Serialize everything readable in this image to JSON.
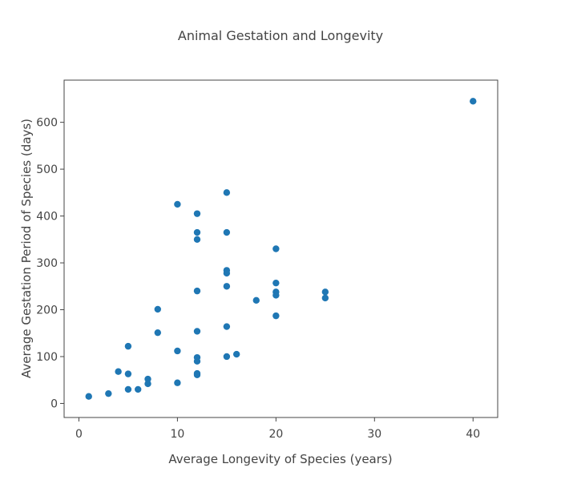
{
  "chart_data": {
    "type": "scatter",
    "title": "Animal Gestation and Longevity",
    "xlabel": "Average Longevity of Species (years)",
    "ylabel": "Average Gestation Period of Species (days)",
    "xlim": [
      -1.5,
      42.5
    ],
    "ylim": [
      -30,
      690
    ],
    "xticks": [
      0,
      10,
      20,
      30,
      40
    ],
    "yticks": [
      0,
      100,
      200,
      300,
      400,
      500,
      600
    ],
    "grid": false,
    "legend": "none",
    "marker_color": "#1f77b4",
    "series": [
      {
        "points": [
          [
            1,
            15
          ],
          [
            3,
            21
          ],
          [
            4,
            68
          ],
          [
            5,
            122
          ],
          [
            5,
            63
          ],
          [
            5,
            30
          ],
          [
            6,
            30
          ],
          [
            7,
            52
          ],
          [
            7,
            42
          ],
          [
            8,
            201
          ],
          [
            8,
            151
          ],
          [
            10,
            425
          ],
          [
            10,
            112
          ],
          [
            10,
            44
          ],
          [
            12,
            405
          ],
          [
            12,
            365
          ],
          [
            12,
            350
          ],
          [
            12,
            240
          ],
          [
            12,
            154
          ],
          [
            12,
            98
          ],
          [
            12,
            90
          ],
          [
            12,
            64
          ],
          [
            12,
            61
          ],
          [
            15,
            450
          ],
          [
            15,
            365
          ],
          [
            15,
            284
          ],
          [
            15,
            278
          ],
          [
            15,
            250
          ],
          [
            15,
            164
          ],
          [
            15,
            100
          ],
          [
            16,
            105
          ],
          [
            18,
            220
          ],
          [
            20,
            330
          ],
          [
            20,
            257
          ],
          [
            20,
            238
          ],
          [
            20,
            231
          ],
          [
            20,
            187
          ],
          [
            25,
            238
          ],
          [
            25,
            225
          ],
          [
            40,
            645
          ]
        ]
      }
    ]
  }
}
